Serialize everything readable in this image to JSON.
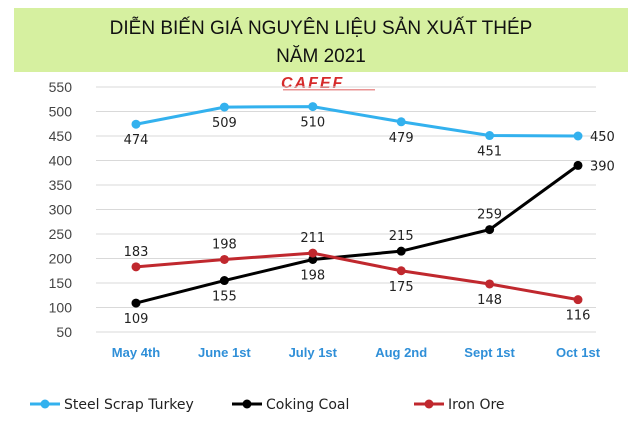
{
  "title": {
    "line1": "DIỄN BIẾN GIÁ NGUYÊN LIỆU SẢN XUẤT THÉP",
    "line2": "NĂM 2021"
  },
  "logo": {
    "text": "CAFEF"
  },
  "colors": {
    "title_band": "#d6f0a0",
    "steel": "#33b1ee",
    "coal": "#000000",
    "iron": "#c0282e",
    "grid": "#d9d9d9",
    "xtick": "#2f8fd8"
  },
  "chart_data": {
    "type": "line",
    "categories": [
      "May 4th",
      "June 1st",
      "July 1st",
      "Aug 2nd",
      "Sept 1st",
      "Oct 1st"
    ],
    "ylim": [
      50,
      550
    ],
    "yticks": [
      50,
      100,
      150,
      200,
      250,
      300,
      350,
      400,
      450,
      500,
      550
    ],
    "grid": true,
    "legend": "bottom",
    "series": [
      {
        "key": "steel",
        "name": "Steel Scrap Turkey",
        "values": [
          474,
          509,
          510,
          479,
          451,
          450
        ],
        "label_pos": "below"
      },
      {
        "key": "coal",
        "name": "Coking Coal",
        "values": [
          109,
          155,
          198,
          215,
          259,
          390
        ],
        "label_pos": "mixed"
      },
      {
        "key": "iron",
        "name": "Iron Ore",
        "values": [
          183,
          198,
          211,
          175,
          148,
          116
        ],
        "label_pos": "mixed"
      }
    ]
  }
}
